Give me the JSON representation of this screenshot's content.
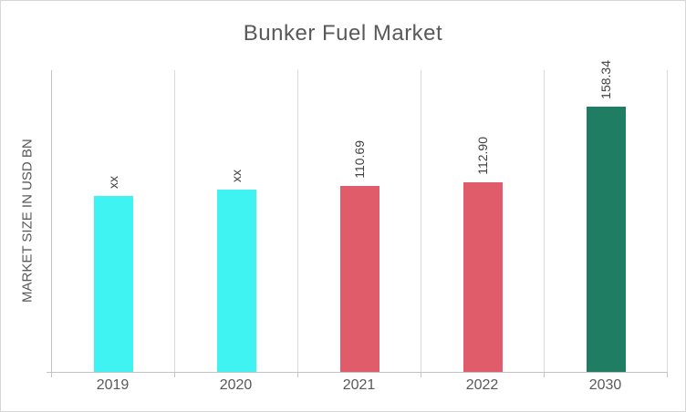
{
  "chart_data": {
    "type": "bar",
    "title": "Bunker Fuel Market",
    "categories": [
      "2019",
      "2020",
      "2021",
      "2022",
      "2030"
    ],
    "values": [
      105,
      109,
      110.69,
      112.9,
      158.34
    ],
    "values_estimated": [
      true,
      true,
      false,
      false,
      false
    ],
    "data_labels": [
      "xx",
      "xx",
      "110.69",
      "112.90",
      "158.34"
    ],
    "xlabel": "",
    "ylabel": "MARKET SIZE IN USD BN",
    "ylim": [
      0,
      180
    ],
    "y_tick_labels_visible": false,
    "legend": "none",
    "grid": "vertical-category-separators",
    "data_label_rotation_deg": -90,
    "bar_colors": [
      "#3FF3F3",
      "#3FF3F3",
      "#E05C6B",
      "#E05C6B",
      "#1E7D63"
    ]
  },
  "colors": {
    "background": "#FFFFFF",
    "frame_border": "#D6D6D6",
    "gridline": "#D9D9D9",
    "axis_line": "#C3C3C3",
    "title_text": "#595959",
    "axis_text": "#595959",
    "data_label_text": "#404040",
    "bar_cyan": "#3FF3F3",
    "bar_red": "#E05C6B",
    "bar_green": "#1E7D63"
  }
}
